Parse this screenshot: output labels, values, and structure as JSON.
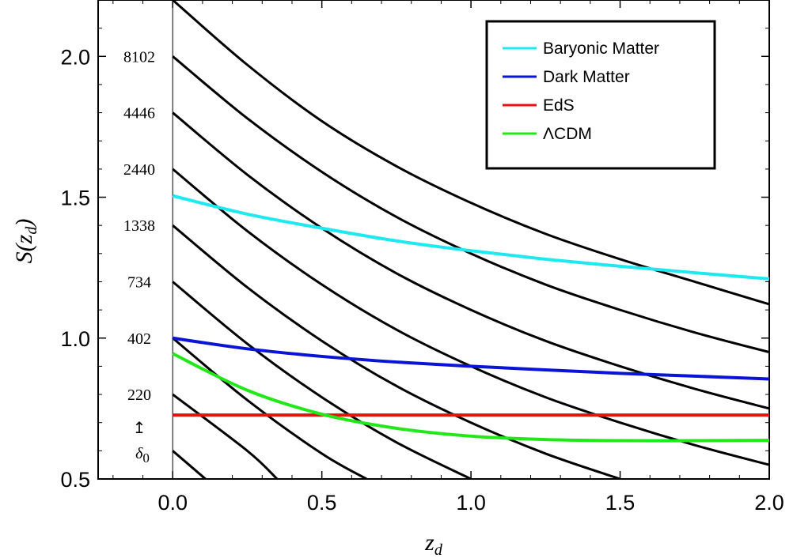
{
  "chart_data": {
    "type": "line",
    "xlabel": "z_d",
    "ylabel": "S(z_d)",
    "xlim": [
      -0.25,
      2.0
    ],
    "ylim": [
      0.5,
      2.2
    ],
    "xticks": [
      0.0,
      0.5,
      1.0,
      1.5,
      2.0
    ],
    "xtick_labels": [
      "0.0",
      "0.5",
      "1.0",
      "1.5",
      "2.0"
    ],
    "yticks": [
      0.5,
      1.0,
      1.5,
      2.0
    ],
    "ytick_labels": [
      "0.5",
      "1.0",
      "1.5",
      "2.0"
    ],
    "grid": false,
    "legend_position": "top-right",
    "family_annotation": {
      "arrow": "↥",
      "symbol": "δ",
      "subscript": "0",
      "labels": [
        {
          "text": "8102",
          "y": 2.0
        },
        {
          "text": "4446",
          "y": 1.8
        },
        {
          "text": "2440",
          "y": 1.6
        },
        {
          "text": "1338",
          "y": 1.4
        },
        {
          "text": "734",
          "y": 1.2
        },
        {
          "text": "402",
          "y": 1.0
        },
        {
          "text": "220",
          "y": 0.8
        }
      ]
    },
    "family_curves": {
      "color": "#000000",
      "x": [
        0.0,
        0.25,
        0.5,
        0.75,
        1.0,
        1.25,
        1.5,
        1.75,
        2.0
      ],
      "series": [
        {
          "values": [
            2.2,
            1.97,
            1.77,
            1.61,
            1.48,
            1.37,
            1.28,
            1.2,
            1.12
          ]
        },
        {
          "values": [
            2.0,
            1.78,
            1.59,
            1.43,
            1.3,
            1.19,
            1.1,
            1.02,
            0.95
          ]
        },
        {
          "values": [
            1.8,
            1.58,
            1.39,
            1.23,
            1.1,
            0.99,
            0.9,
            0.82,
            0.75
          ]
        },
        {
          "values": [
            1.6,
            1.38,
            1.19,
            1.03,
            0.9,
            0.79,
            0.7,
            0.62,
            0.55
          ]
        },
        {
          "values": [
            1.4,
            1.18,
            0.99,
            0.83,
            0.7,
            0.59,
            0.5
          ]
        },
        {
          "values": [
            1.2,
            0.98,
            0.79,
            0.63,
            0.5
          ]
        },
        {
          "values": [
            1.0,
            0.78,
            0.59,
            0.5
          ]
        },
        {
          "values": [
            0.8,
            0.6,
            0.5
          ]
        },
        {
          "values": [
            0.6,
            0.5
          ]
        }
      ],
      "x_end": [
        2.0,
        2.0,
        2.0,
        2.0,
        1.5,
        1.0,
        0.65,
        0.35,
        0.11
      ]
    },
    "x": [
      0.0,
      0.25,
      0.5,
      0.75,
      1.0,
      1.25,
      1.5,
      1.75,
      2.0
    ],
    "series": [
      {
        "name": "Baryonic Matter",
        "color": "#1ee8f0",
        "values": [
          1.505,
          1.44,
          1.39,
          1.345,
          1.31,
          1.28,
          1.255,
          1.232,
          1.21
        ]
      },
      {
        "name": "Dark Matter",
        "color": "#0a14d6",
        "values": [
          1.0,
          0.962,
          0.935,
          0.915,
          0.9,
          0.887,
          0.875,
          0.865,
          0.855
        ]
      },
      {
        "name": "EdS",
        "color": "#e81010",
        "values": [
          0.727,
          0.727,
          0.727,
          0.727,
          0.727,
          0.727,
          0.727,
          0.727,
          0.727
        ]
      },
      {
        "name": "ΛCDM",
        "color": "#22e81a",
        "values": [
          0.945,
          0.815,
          0.73,
          0.68,
          0.652,
          0.64,
          0.636,
          0.636,
          0.637
        ]
      }
    ]
  }
}
